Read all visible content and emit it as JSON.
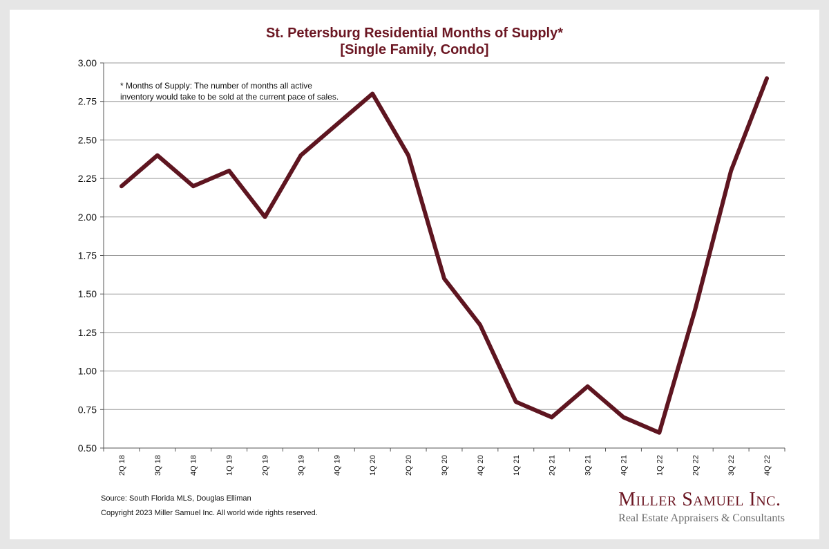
{
  "chart_data": {
    "type": "line",
    "title": "St. Petersburg Residential Months of Supply*",
    "subtitle": "[Single Family, Condo]",
    "xlabel": "",
    "ylabel": "",
    "ylim": [
      0.5,
      3.0
    ],
    "yticks": [
      "0.50",
      "0.75",
      "1.00",
      "1.25",
      "1.50",
      "1.75",
      "2.00",
      "2.25",
      "2.50",
      "2.75",
      "3.00"
    ],
    "categories": [
      "2Q 18",
      "3Q 18",
      "4Q 18",
      "1Q 19",
      "2Q 19",
      "3Q 19",
      "4Q 19",
      "1Q 20",
      "2Q 20",
      "3Q 20",
      "4Q 20",
      "1Q 21",
      "2Q 21",
      "3Q 21",
      "4Q 21",
      "1Q 22",
      "2Q 22",
      "3Q 22",
      "4Q 22"
    ],
    "series": [
      {
        "values": [
          2.2,
          2.4,
          2.2,
          2.3,
          2.0,
          2.4,
          2.6,
          2.8,
          2.4,
          1.6,
          1.3,
          0.8,
          0.7,
          0.9,
          0.7,
          0.6,
          1.4,
          2.3,
          2.9
        ]
      }
    ],
    "grid": true,
    "legend": "none"
  },
  "annotation": {
    "footnote_line1": "* Months of Supply: The number of months all active",
    "footnote_line2": "inventory would take to be sold at the current pace of sales."
  },
  "footer": {
    "source": "Source: South Florida MLS, Douglas Elliman",
    "copyright": "Copyright 2023 Miller Samuel Inc.  All world wide rights reserved."
  },
  "brand": {
    "name": "Miller Samuel Inc.",
    "tagline": "Real Estate Appraisers & Consultants"
  },
  "colors": {
    "line": "#5e1520",
    "title": "#6b1622",
    "grid": "#9a9a9a",
    "background": "#ffffff",
    "frame": "#e6e6e6"
  }
}
